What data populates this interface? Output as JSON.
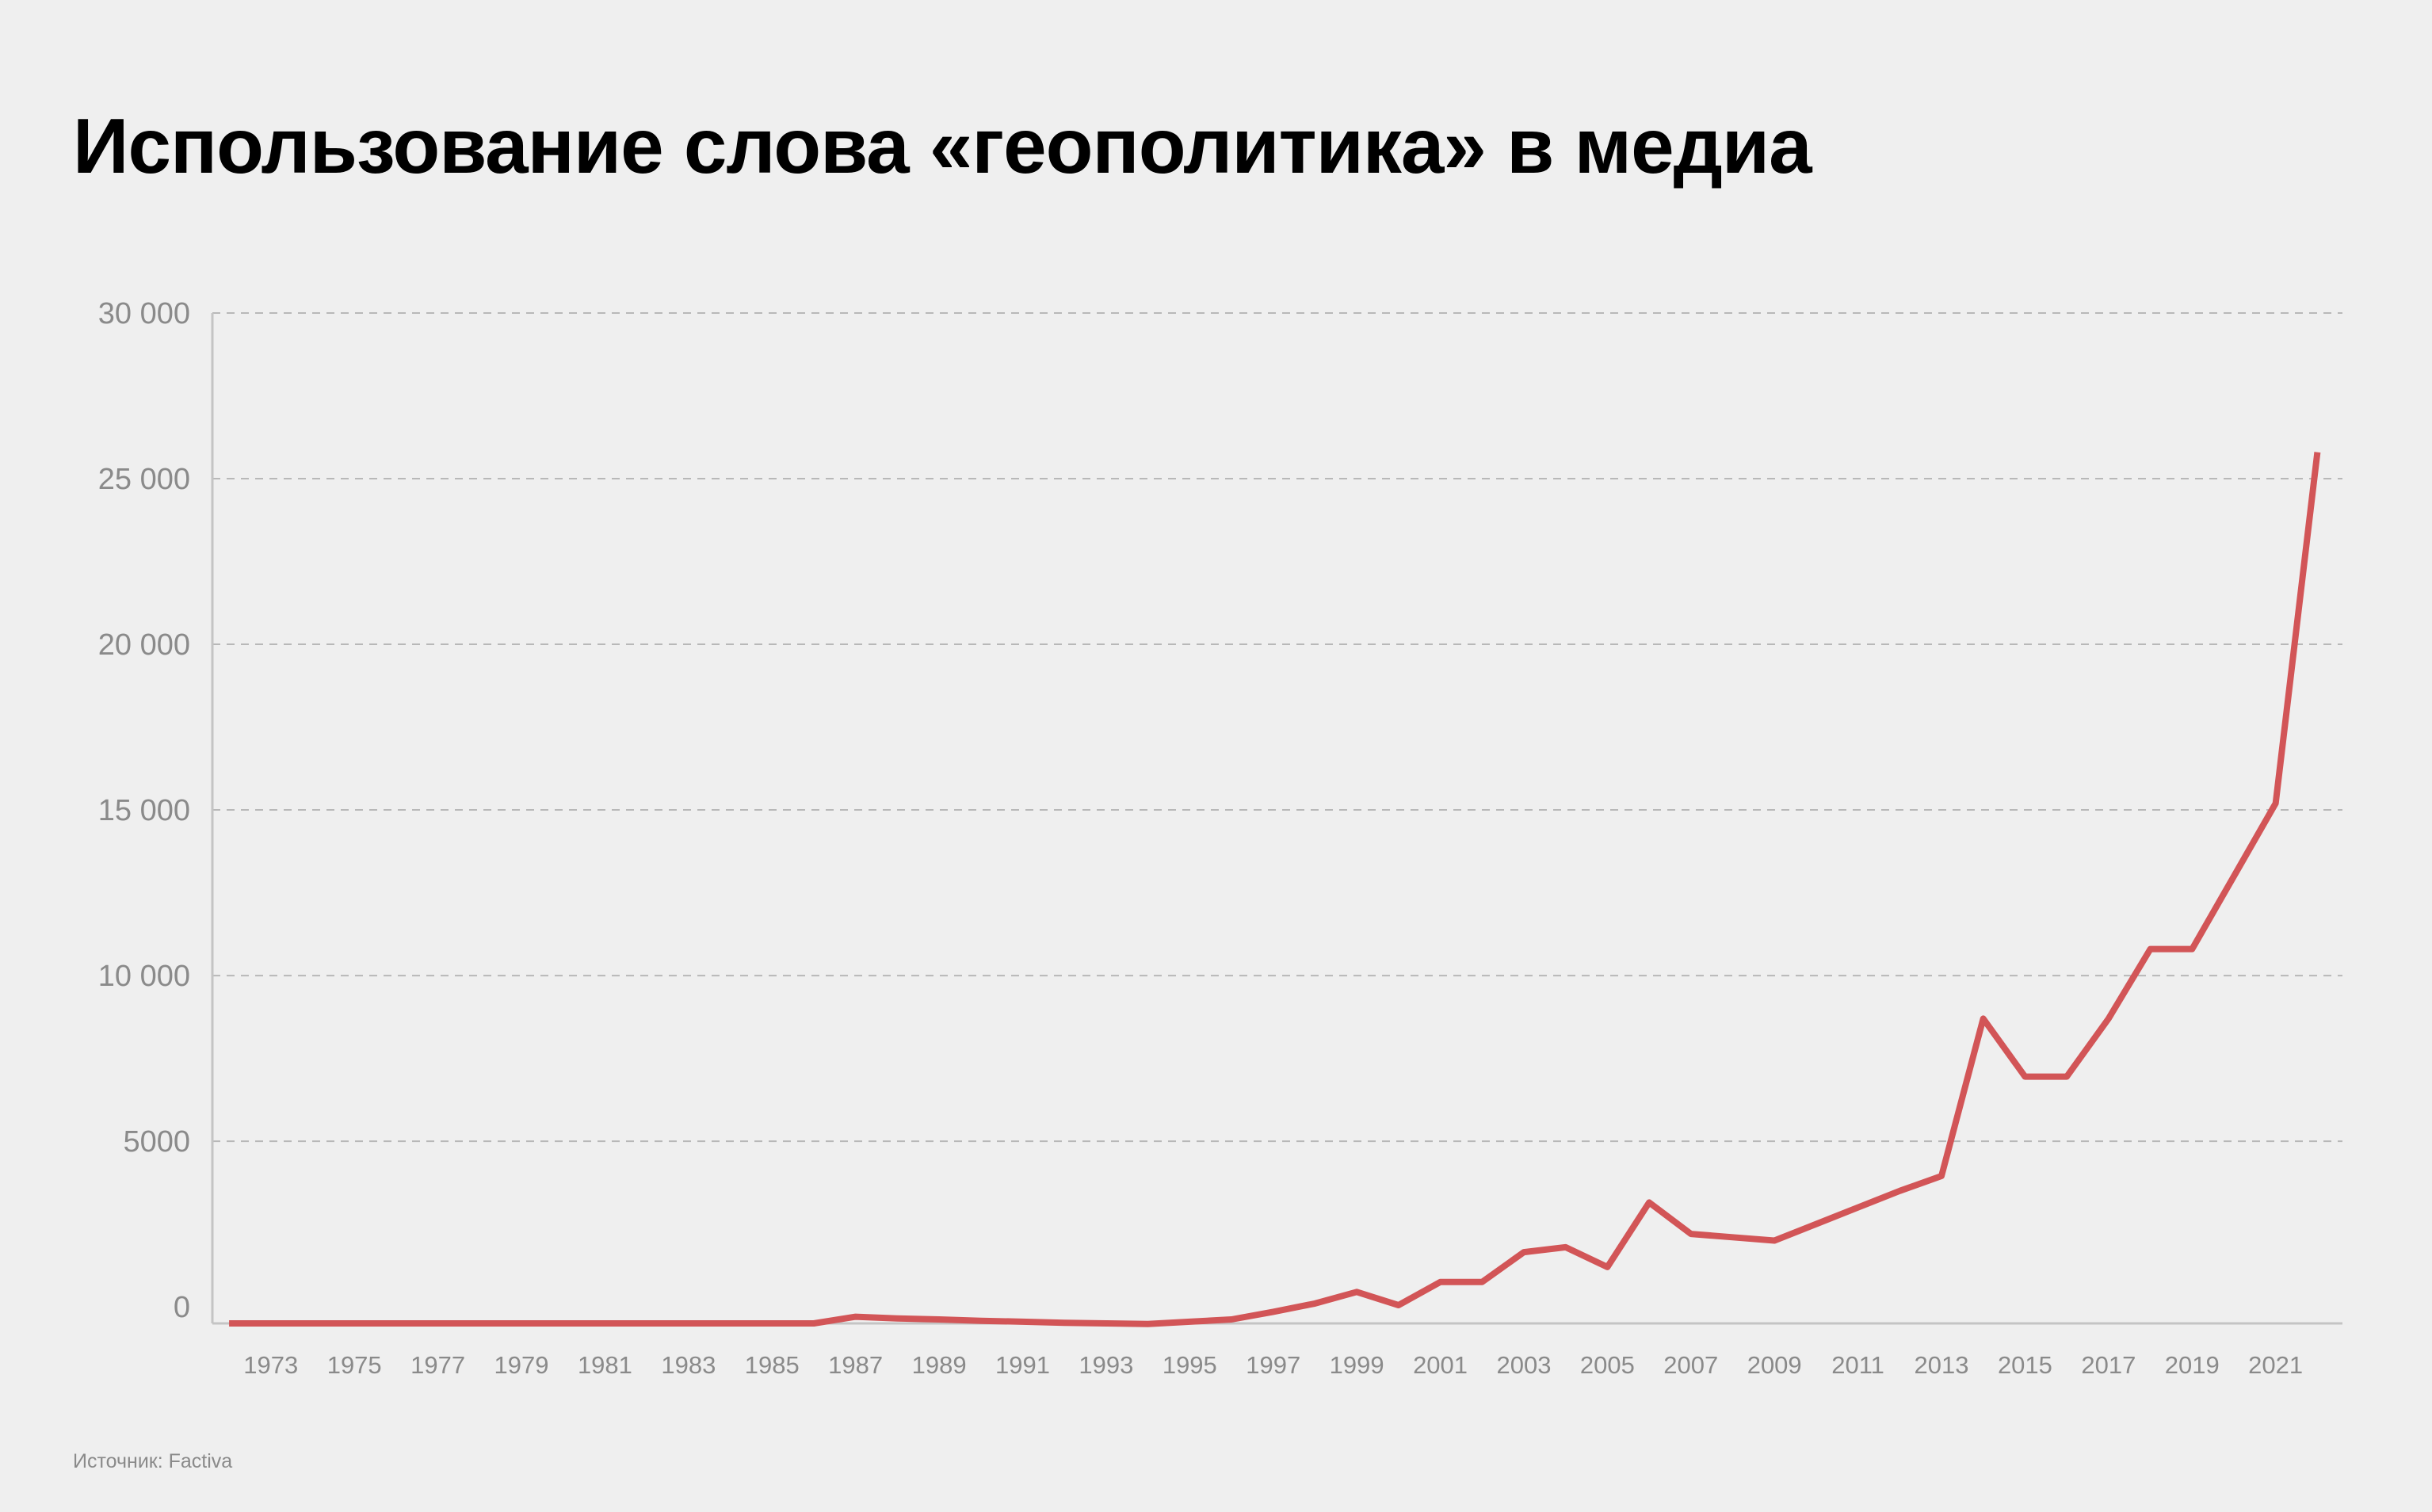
{
  "title": "Использование слова «геополитика» в медиа",
  "source": "Источник: Factiva",
  "chart_data": {
    "type": "line",
    "title": "Использование слова «геополитика» в медиа",
    "xlabel": "",
    "ylabel": "",
    "x_range": [
      1971.6,
      2022.6
    ],
    "ylim": [
      -500,
      30000
    ],
    "y_ticks": [
      {
        "value": 0,
        "label": "0"
      },
      {
        "value": 5000,
        "label": "5000"
      },
      {
        "value": 10000,
        "label": "10 000"
      },
      {
        "value": 15000,
        "label": "15 000"
      },
      {
        "value": 20000,
        "label": "20 000"
      },
      {
        "value": 25000,
        "label": "25 000"
      },
      {
        "value": 30000,
        "label": "30 000"
      }
    ],
    "x_ticks": [
      "1973",
      "1975",
      "1977",
      "1979",
      "1981",
      "1983",
      "1985",
      "1987",
      "1989",
      "1991",
      "1993",
      "1995",
      "1997",
      "1999",
      "2001",
      "2003",
      "2005",
      "2007",
      "2009",
      "2011",
      "2013",
      "2015",
      "2017",
      "2019",
      "2021"
    ],
    "grid": "horizontal-dashed",
    "line_color": "#d25557",
    "grid_color": "#b8b8b8",
    "axis_color": "#c4c4c4",
    "series": [
      {
        "x": [
          1972,
          1973,
          1974,
          1975,
          1976,
          1977,
          1978,
          1979,
          1980,
          1981,
          1982,
          1983,
          1984,
          1985,
          1986,
          1987,
          1988,
          1989,
          1990,
          1991,
          1992,
          1993,
          1994,
          1995,
          1996,
          1997,
          1998,
          1999,
          2000,
          2001,
          2002,
          2003,
          2004,
          2005,
          2006,
          2007,
          2008,
          2009,
          2010,
          2011,
          2012,
          2013,
          2014,
          2015,
          2016,
          2017,
          2018,
          2019,
          2020,
          2021,
          2022
        ],
        "values": [
          -500,
          -500,
          -500,
          -500,
          -500,
          -500,
          -500,
          -500,
          -500,
          -500,
          -500,
          -500,
          -500,
          -500,
          -500,
          -300,
          -350,
          -380,
          -420,
          -450,
          -480,
          -500,
          -520,
          -450,
          -380,
          -150,
          100,
          450,
          50,
          750,
          750,
          1650,
          1800,
          1200,
          3150,
          2200,
          2100,
          2000,
          2500,
          3000,
          3500,
          3950,
          8700,
          6950,
          6950,
          8700,
          10800,
          10800,
          13000,
          15200,
          25800
        ]
      }
    ]
  }
}
